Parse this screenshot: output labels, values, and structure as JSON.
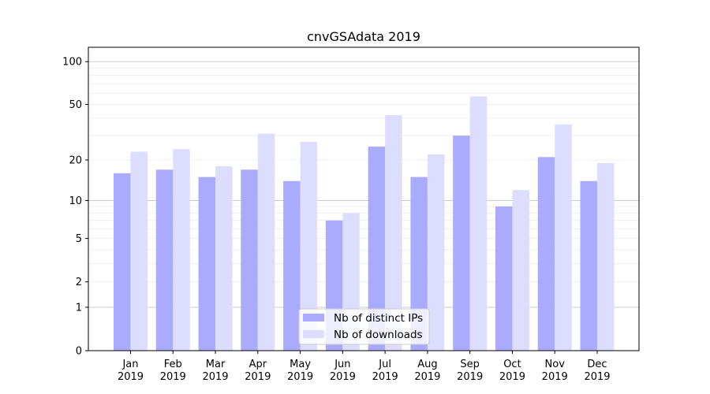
{
  "chart_data": {
    "type": "bar",
    "title": "cnvGSAdata 2019",
    "xlabel": "",
    "ylabel": "",
    "yscale": "log(1+y)",
    "ylim": [
      0,
      126
    ],
    "yticks": [
      0,
      1,
      2,
      5,
      10,
      20,
      50,
      100
    ],
    "ytick_labels": [
      "0",
      "1",
      "2",
      "5",
      "10",
      "20",
      "50",
      "100"
    ],
    "categories": [
      [
        "Jan",
        "2019"
      ],
      [
        "Feb",
        "2019"
      ],
      [
        "Mar",
        "2019"
      ],
      [
        "Apr",
        "2019"
      ],
      [
        "May",
        "2019"
      ],
      [
        "Jun",
        "2019"
      ],
      [
        "Jul",
        "2019"
      ],
      [
        "Aug",
        "2019"
      ],
      [
        "Sep",
        "2019"
      ],
      [
        "Oct",
        "2019"
      ],
      [
        "Nov",
        "2019"
      ],
      [
        "Dec",
        "2019"
      ]
    ],
    "series": [
      {
        "name": "Nb of distinct IPs",
        "color": "#aaaaff",
        "values": [
          16,
          17,
          15,
          17,
          14,
          7,
          25,
          15,
          30,
          9,
          21,
          14
        ]
      },
      {
        "name": "Nb of downloads",
        "color": "#ddddff",
        "values": [
          23,
          24,
          18,
          31,
          27,
          8,
          42,
          22,
          57,
          12,
          36,
          19
        ]
      }
    ],
    "legend": "lower-center",
    "grid": true
  }
}
